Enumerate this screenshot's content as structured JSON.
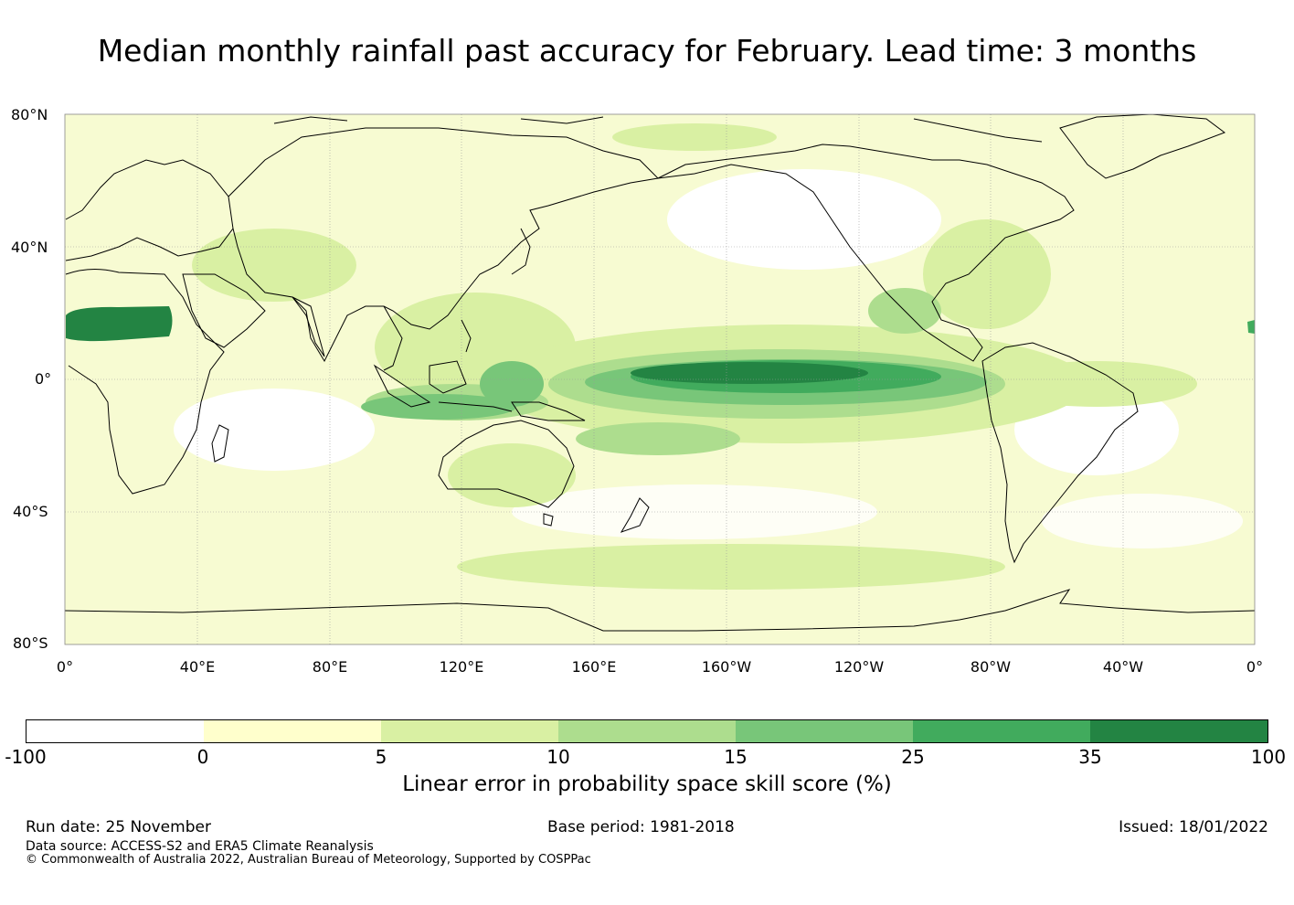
{
  "title": "Median monthly rainfall past accuracy for February. Lead time: 3 months",
  "map": {
    "lat_labels": [
      "80°N",
      "40°N",
      "0°",
      "40°S",
      "80°S"
    ],
    "lon_labels": [
      "0°",
      "40°E",
      "80°E",
      "120°E",
      "160°E",
      "160°W",
      "120°W",
      "80°W",
      "40°W",
      "0°"
    ]
  },
  "colorbar": {
    "colors": [
      "#ffffff",
      "#ffffcc",
      "#d9f0a3",
      "#addd8e",
      "#78c679",
      "#41ab5d",
      "#238443"
    ],
    "ticks": [
      "-100",
      "0",
      "5",
      "10",
      "15",
      "25",
      "35",
      "100"
    ],
    "label": "Linear error in probability space skill score (%)"
  },
  "footer": {
    "run_date": "Run date: 25 November",
    "base_period": "Base period: 1981-2018",
    "issued": "Issued: 18/01/2022",
    "data_source": "Data source: ACCESS-S2 and ERA5 Climate Reanalysis",
    "copyright": "© Commonwealth of Australia 2022, Australian Bureau of Meteorology, Supported by COSPPac"
  }
}
